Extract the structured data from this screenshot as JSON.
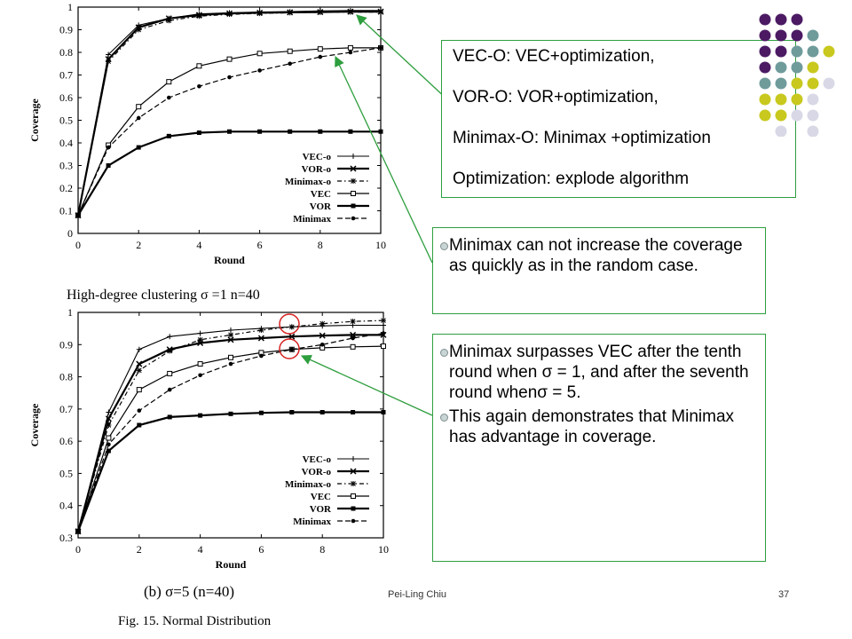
{
  "callouts": {
    "definitions": [
      "VEC-O: VEC+optimization,",
      "VOR-O: VOR+optimization,",
      "Minimax-O: Minimax +optimization",
      "Optimization: explode algorithm"
    ],
    "note1": "Minimax can not increase the coverage as quickly as in the random case.",
    "note2": "Minimax surpasses VEC after the tenth round when σ = 1, and after the seventh round whenσ = 5.",
    "note3": "This again demonstrates that Minimax has advantage in coverage."
  },
  "subtitle": "High-degree clustering σ =1 n=40",
  "caption_b": "(b) σ=5 (n=40)",
  "figure_caption": "Fig. 15.    Normal Distribution",
  "footer": "Pei-Ling Chiu",
  "page_number": "37",
  "decoration_colors": [
    "#4b1a63",
    "#6f9b9b",
    "#c8c81e",
    "#d8d8e6"
  ],
  "chart_data": [
    {
      "type": "line",
      "xlabel": "Round",
      "ylabel": "Coverage",
      "xlim": [
        0,
        10
      ],
      "ylim": [
        0,
        1
      ],
      "xticks": [
        "0",
        "2",
        "4",
        "6",
        "8",
        "10"
      ],
      "yticks": [
        "0",
        "0.1",
        "0.2",
        "0.3",
        "0.4",
        "0.5",
        "0.6",
        "0.7",
        "0.8",
        "0.9",
        "1"
      ],
      "legend_position": "bottom-right",
      "x": [
        0,
        1,
        2,
        3,
        4,
        5,
        6,
        7,
        8,
        9,
        10
      ],
      "series": [
        {
          "name": "VEC-o",
          "values": [
            0.08,
            0.79,
            0.92,
            0.95,
            0.97,
            0.975,
            0.978,
            0.98,
            0.983,
            0.985,
            0.985
          ]
        },
        {
          "name": "VOR-o",
          "values": [
            0.08,
            0.77,
            0.91,
            0.95,
            0.965,
            0.972,
            0.975,
            0.977,
            0.978,
            0.98,
            0.98
          ]
        },
        {
          "name": "Minimax-o",
          "values": [
            0.08,
            0.76,
            0.9,
            0.94,
            0.96,
            0.968,
            0.972,
            0.975,
            0.977,
            0.978,
            0.978
          ]
        },
        {
          "name": "VEC",
          "values": [
            0.08,
            0.39,
            0.56,
            0.67,
            0.74,
            0.77,
            0.795,
            0.805,
            0.815,
            0.82,
            0.82
          ]
        },
        {
          "name": "VOR",
          "values": [
            0.08,
            0.3,
            0.38,
            0.43,
            0.445,
            0.45,
            0.45,
            0.45,
            0.45,
            0.45,
            0.45
          ]
        },
        {
          "name": "Minimax",
          "values": [
            0.08,
            0.38,
            0.51,
            0.6,
            0.65,
            0.69,
            0.72,
            0.75,
            0.78,
            0.8,
            0.82
          ]
        }
      ]
    },
    {
      "type": "line",
      "xlabel": "Round",
      "ylabel": "Coverage",
      "xlim": [
        0,
        10
      ],
      "ylim": [
        0.3,
        1
      ],
      "xticks": [
        "0",
        "2",
        "4",
        "6",
        "8",
        "10"
      ],
      "yticks": [
        "0.3",
        "0.4",
        "0.5",
        "0.6",
        "0.7",
        "0.8",
        "0.9",
        "1"
      ],
      "legend_position": "bottom-right",
      "x": [
        0,
        1,
        2,
        3,
        4,
        5,
        6,
        7,
        8,
        9,
        10
      ],
      "series": [
        {
          "name": "VEC-o",
          "values": [
            0.32,
            0.69,
            0.885,
            0.925,
            0.935,
            0.945,
            0.95,
            0.955,
            0.958,
            0.96,
            0.96
          ]
        },
        {
          "name": "VOR-o",
          "values": [
            0.32,
            0.67,
            0.84,
            0.885,
            0.905,
            0.915,
            0.92,
            0.925,
            0.928,
            0.93,
            0.93
          ]
        },
        {
          "name": "Minimax-o",
          "values": [
            0.32,
            0.65,
            0.82,
            0.88,
            0.915,
            0.93,
            0.945,
            0.955,
            0.965,
            0.972,
            0.975
          ]
        },
        {
          "name": "VEC",
          "values": [
            0.32,
            0.61,
            0.76,
            0.81,
            0.84,
            0.86,
            0.875,
            0.885,
            0.89,
            0.893,
            0.895
          ]
        },
        {
          "name": "VOR",
          "values": [
            0.32,
            0.57,
            0.65,
            0.675,
            0.68,
            0.685,
            0.688,
            0.69,
            0.69,
            0.69,
            0.69
          ]
        },
        {
          "name": "Minimax",
          "values": [
            0.32,
            0.59,
            0.695,
            0.76,
            0.805,
            0.84,
            0.865,
            0.885,
            0.9,
            0.92,
            0.935
          ]
        }
      ]
    }
  ]
}
